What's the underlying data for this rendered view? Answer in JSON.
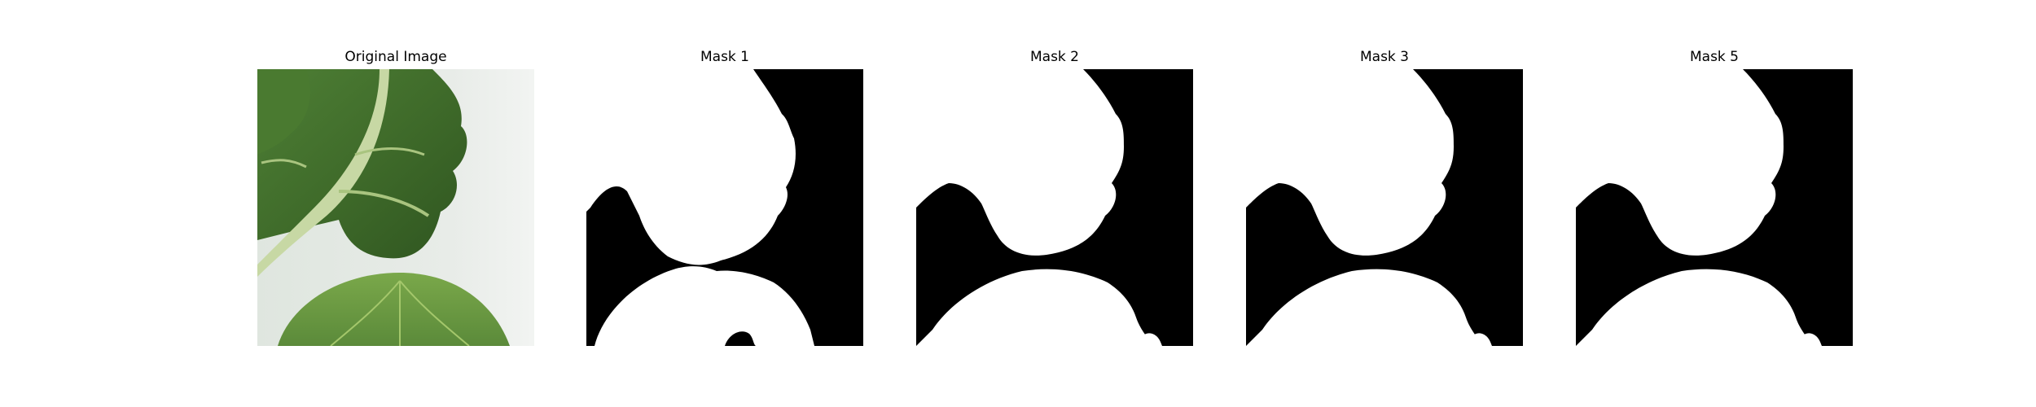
{
  "figure": {
    "panels": [
      {
        "title": "Original Image",
        "kind": "photo",
        "subject": "green leafy vegetable leaves on light background"
      },
      {
        "title": "Mask 1",
        "kind": "binary-mask"
      },
      {
        "title": "Mask 2",
        "kind": "binary-mask"
      },
      {
        "title": "Mask 3",
        "kind": "binary-mask"
      },
      {
        "title": "Mask 5",
        "kind": "binary-mask"
      }
    ]
  },
  "colors": {
    "background": "#ffffff",
    "mask_fg": "#ffffff",
    "mask_bg": "#000000",
    "leaf_dark": "#3f6b2a",
    "leaf_mid": "#5b8a3a",
    "leaf_light": "#8fb35a",
    "stem": "#c9d9a8",
    "photo_bg": "#e6ebe6"
  }
}
